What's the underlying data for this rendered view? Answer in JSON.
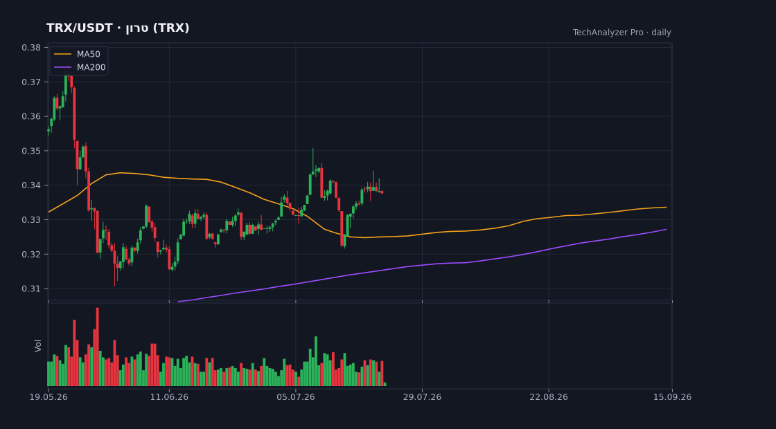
{
  "header": {
    "title": "TRX/USDT  ·  טרון (TRX)",
    "source": "TechAnalyzer Pro · daily"
  },
  "colors": {
    "background": "#131722",
    "up": "#2bb35a",
    "down": "#e8343f",
    "ma50": "#f7a21b",
    "ma200": "#9b4dff",
    "grid": "#232938"
  },
  "chart_data": {
    "type": "candlestick",
    "price_axis": {
      "ylim": [
        0.3066,
        0.3813
      ],
      "ticks": [
        "0.31",
        "0.32",
        "0.33",
        "0.34",
        "0.35",
        "0.36",
        "0.37",
        "0.38"
      ]
    },
    "volume_axis": {
      "ylabel": "Vol"
    },
    "x_ticks": [
      "19.05.26",
      "11.06.26",
      "05.07.26",
      "29.07.26",
      "22.08.26",
      "15.09.26"
    ],
    "legend": [
      "MA50",
      "MA200"
    ],
    "legend_position": "top-left",
    "grid": true,
    "candles": [
      [
        0.3557,
        0.3571,
        0.3544,
        0.3562
      ],
      [
        0.3572,
        0.3595,
        0.3552,
        0.3593
      ],
      [
        0.3591,
        0.3658,
        0.3586,
        0.3653
      ],
      [
        0.3654,
        0.3665,
        0.3617,
        0.3623
      ],
      [
        0.3623,
        0.3631,
        0.3588,
        0.3629
      ],
      [
        0.3626,
        0.3673,
        0.3625,
        0.3658
      ],
      [
        0.3663,
        0.3732,
        0.3643,
        0.3722
      ],
      [
        0.3722,
        0.3761,
        0.3703,
        0.3716
      ],
      [
        0.3717,
        0.3728,
        0.3667,
        0.3684
      ],
      [
        0.3682,
        0.3687,
        0.3507,
        0.3532
      ],
      [
        0.3528,
        0.353,
        0.34,
        0.3446
      ],
      [
        0.3446,
        0.3499,
        0.3445,
        0.3481
      ],
      [
        0.3481,
        0.3516,
        0.3479,
        0.3512
      ],
      [
        0.3514,
        0.3525,
        0.342,
        0.344
      ],
      [
        0.344,
        0.3451,
        0.3323,
        0.3327
      ],
      [
        0.333,
        0.3358,
        0.3297,
        0.3333
      ],
      [
        0.3334,
        0.3335,
        0.3272,
        0.3324
      ],
      [
        0.3325,
        0.3327,
        0.3203,
        0.3204
      ],
      [
        0.3205,
        0.3244,
        0.3186,
        0.3244
      ],
      [
        0.3246,
        0.3294,
        0.3232,
        0.327
      ],
      [
        0.3271,
        0.3284,
        0.3241,
        0.3268
      ],
      [
        0.3265,
        0.3273,
        0.3217,
        0.3226
      ],
      [
        0.3226,
        0.3234,
        0.3206,
        0.321
      ],
      [
        0.321,
        0.3232,
        0.3107,
        0.3172
      ],
      [
        0.3172,
        0.3194,
        0.3122,
        0.316
      ],
      [
        0.316,
        0.318,
        0.3152,
        0.3179
      ],
      [
        0.3177,
        0.3232,
        0.3158,
        0.322
      ],
      [
        0.3215,
        0.3224,
        0.3183,
        0.3184
      ],
      [
        0.3184,
        0.319,
        0.3166,
        0.3173
      ],
      [
        0.3176,
        0.3225,
        0.3165,
        0.3219
      ],
      [
        0.3219,
        0.322,
        0.3205,
        0.321
      ],
      [
        0.3209,
        0.3245,
        0.3202,
        0.3234
      ],
      [
        0.324,
        0.3279,
        0.3231,
        0.3269
      ],
      [
        0.3274,
        0.3282,
        0.3271,
        0.328
      ],
      [
        0.328,
        0.3344,
        0.3276,
        0.3341
      ],
      [
        0.3338,
        0.3338,
        0.3295,
        0.3292
      ],
      [
        0.3295,
        0.3298,
        0.3265,
        0.3277
      ],
      [
        0.3278,
        0.329,
        0.3237,
        0.3247
      ],
      [
        0.3236,
        0.3236,
        0.319,
        0.3206
      ],
      [
        0.3208,
        0.3212,
        0.3199,
        0.3212
      ],
      [
        0.3214,
        0.3242,
        0.321,
        0.3218
      ],
      [
        0.3219,
        0.3228,
        0.3205,
        0.3213
      ],
      [
        0.3214,
        0.3223,
        0.3154,
        0.3156
      ],
      [
        0.3155,
        0.3174,
        0.315,
        0.3163
      ],
      [
        0.3164,
        0.3193,
        0.3153,
        0.3178
      ],
      [
        0.318,
        0.3246,
        0.3171,
        0.3234
      ],
      [
        0.3243,
        0.3259,
        0.3243,
        0.3256
      ],
      [
        0.3254,
        0.3303,
        0.3251,
        0.3294
      ],
      [
        0.3294,
        0.3303,
        0.3287,
        0.3296
      ],
      [
        0.3296,
        0.3326,
        0.3287,
        0.3317
      ],
      [
        0.3312,
        0.3317,
        0.3276,
        0.3288
      ],
      [
        0.3288,
        0.3331,
        0.3276,
        0.3319
      ],
      [
        0.3317,
        0.333,
        0.3301,
        0.3302
      ],
      [
        0.3303,
        0.3311,
        0.3296,
        0.3307
      ],
      [
        0.3308,
        0.3322,
        0.3302,
        0.3314
      ],
      [
        0.3314,
        0.332,
        0.3241,
        0.3245
      ],
      [
        0.325,
        0.3262,
        0.3244,
        0.3259
      ],
      [
        0.326,
        0.3261,
        0.3243,
        0.3244
      ],
      [
        0.3234,
        0.3235,
        0.3219,
        0.3229
      ],
      [
        0.3228,
        0.326,
        0.3228,
        0.3257
      ],
      [
        0.3264,
        0.3275,
        0.3262,
        0.3271
      ],
      [
        0.3271,
        0.3272,
        0.3261,
        0.3268
      ],
      [
        0.3269,
        0.3303,
        0.326,
        0.3297
      ],
      [
        0.3294,
        0.3296,
        0.3285,
        0.3285
      ],
      [
        0.3285,
        0.3308,
        0.3279,
        0.3297
      ],
      [
        0.3297,
        0.3317,
        0.3282,
        0.3312
      ],
      [
        0.3315,
        0.3332,
        0.331,
        0.3321
      ],
      [
        0.332,
        0.3322,
        0.3241,
        0.325
      ],
      [
        0.325,
        0.3266,
        0.3241,
        0.3265
      ],
      [
        0.3257,
        0.3291,
        0.3255,
        0.3285
      ],
      [
        0.3285,
        0.3293,
        0.3255,
        0.3259
      ],
      [
        0.3259,
        0.3289,
        0.3258,
        0.3285
      ],
      [
        0.328,
        0.3282,
        0.3267,
        0.3269
      ],
      [
        0.3273,
        0.3294,
        0.3256,
        0.3286
      ],
      [
        0.3286,
        0.3314,
        0.327,
        0.327
      ],
      [
        0.3275,
        0.3276,
        0.3276,
        0.3275
      ],
      [
        0.3274,
        0.3282,
        0.326,
        0.3276
      ],
      [
        0.3273,
        0.3283,
        0.3265,
        0.3278
      ],
      [
        0.3278,
        0.3291,
        0.3266,
        0.3289
      ],
      [
        0.3292,
        0.3301,
        0.3284,
        0.3296
      ],
      [
        0.33,
        0.331,
        0.3298,
        0.3306
      ],
      [
        0.3309,
        0.3366,
        0.3309,
        0.335
      ],
      [
        0.3358,
        0.3374,
        0.335,
        0.3367
      ],
      [
        0.3364,
        0.3384,
        0.3343,
        0.3348
      ],
      [
        0.3349,
        0.3349,
        0.3324,
        0.3332
      ],
      [
        0.3326,
        0.3328,
        0.3315,
        0.3314
      ],
      [
        0.3313,
        0.3313,
        0.3313,
        0.3313
      ],
      [
        0.3313,
        0.3335,
        0.3289,
        0.3311
      ],
      [
        0.331,
        0.3337,
        0.3308,
        0.3329
      ],
      [
        0.3327,
        0.3337,
        0.3325,
        0.3343
      ],
      [
        0.3345,
        0.3372,
        0.3345,
        0.337
      ],
      [
        0.3372,
        0.3435,
        0.3372,
        0.3431
      ],
      [
        0.3431,
        0.3508,
        0.3432,
        0.344
      ],
      [
        0.3442,
        0.3459,
        0.3424,
        0.3446
      ],
      [
        0.344,
        0.3452,
        0.3435,
        0.345
      ],
      [
        0.345,
        0.3465,
        0.3363,
        0.3364
      ],
      [
        0.3363,
        0.3386,
        0.3355,
        0.3369
      ],
      [
        0.337,
        0.3387,
        0.3356,
        0.3384
      ],
      [
        0.3376,
        0.3418,
        0.3372,
        0.3413
      ],
      [
        0.3411,
        0.3415,
        0.3406,
        0.3409
      ],
      [
        0.3409,
        0.3411,
        0.3362,
        0.3364
      ],
      [
        0.3363,
        0.3365,
        0.3323,
        0.3327
      ],
      [
        0.3325,
        0.3325,
        0.322,
        0.3225
      ],
      [
        0.3223,
        0.3259,
        0.3216,
        0.3256
      ],
      [
        0.3252,
        0.3317,
        0.3253,
        0.3313
      ],
      [
        0.3309,
        0.3319,
        0.3275,
        0.3317
      ],
      [
        0.3318,
        0.3343,
        0.3304,
        0.3338
      ],
      [
        0.3338,
        0.3354,
        0.3329,
        0.3347
      ],
      [
        0.3347,
        0.3355,
        0.3342,
        0.3344
      ],
      [
        0.3347,
        0.3393,
        0.3341,
        0.3387
      ],
      [
        0.339,
        0.3396,
        0.3378,
        0.3389
      ],
      [
        0.3389,
        0.341,
        0.338,
        0.3396
      ],
      [
        0.3396,
        0.3408,
        0.3355,
        0.3383
      ],
      [
        0.3384,
        0.3442,
        0.3383,
        0.3395
      ],
      [
        0.3395,
        0.3408,
        0.338,
        0.3383
      ],
      [
        0.338,
        0.342,
        0.3378,
        0.3383
      ],
      [
        0.3383,
        0.3386,
        0.3375,
        0.3376
      ]
    ],
    "ma50": [
      [
        0,
        0.3322
      ],
      [
        10,
        0.337
      ],
      [
        15,
        0.3405
      ],
      [
        20,
        0.343
      ],
      [
        25,
        0.3436
      ],
      [
        30,
        0.3434
      ],
      [
        35,
        0.343
      ],
      [
        40,
        0.3423
      ],
      [
        45,
        0.342
      ],
      [
        50,
        0.3418
      ],
      [
        55,
        0.3417
      ],
      [
        60,
        0.3409
      ],
      [
        65,
        0.3394
      ],
      [
        70,
        0.3378
      ],
      [
        75,
        0.3359
      ],
      [
        80,
        0.3346
      ],
      [
        85,
        0.3332
      ],
      [
        90,
        0.331
      ],
      [
        93,
        0.3291
      ],
      [
        96,
        0.3272
      ],
      [
        100,
        0.3261
      ],
      [
        105,
        0.325
      ],
      [
        110,
        0.3248
      ],
      [
        115,
        0.325
      ],
      [
        120,
        0.3251
      ],
      [
        125,
        0.3253
      ],
      [
        130,
        0.3258
      ],
      [
        135,
        0.3263
      ],
      [
        140,
        0.3266
      ],
      [
        145,
        0.3267
      ],
      [
        150,
        0.327
      ],
      [
        155,
        0.3275
      ],
      [
        160,
        0.3282
      ],
      [
        165,
        0.3295
      ],
      [
        170,
        0.3303
      ],
      [
        175,
        0.3307
      ],
      [
        180,
        0.3312
      ],
      [
        185,
        0.3313
      ],
      [
        190,
        0.3317
      ],
      [
        195,
        0.3321
      ],
      [
        200,
        0.3326
      ],
      [
        205,
        0.3331
      ],
      [
        210,
        0.3334
      ],
      [
        215,
        0.3336
      ]
    ],
    "ma200": [
      [
        45,
        0.3062
      ],
      [
        50,
        0.3067
      ],
      [
        55,
        0.3074
      ],
      [
        60,
        0.308
      ],
      [
        65,
        0.3087
      ],
      [
        70,
        0.3093
      ],
      [
        75,
        0.3099
      ],
      [
        80,
        0.3106
      ],
      [
        85,
        0.3112
      ],
      [
        90,
        0.3119
      ],
      [
        95,
        0.3126
      ],
      [
        100,
        0.3133
      ],
      [
        105,
        0.314
      ],
      [
        110,
        0.3146
      ],
      [
        115,
        0.3152
      ],
      [
        120,
        0.3158
      ],
      [
        125,
        0.3164
      ],
      [
        130,
        0.3168
      ],
      [
        135,
        0.3172
      ],
      [
        140,
        0.3174
      ],
      [
        145,
        0.3175
      ],
      [
        150,
        0.318
      ],
      [
        155,
        0.3186
      ],
      [
        160,
        0.3192
      ],
      [
        165,
        0.3199
      ],
      [
        170,
        0.3207
      ],
      [
        175,
        0.3216
      ],
      [
        180,
        0.3224
      ],
      [
        185,
        0.3232
      ],
      [
        190,
        0.3238
      ],
      [
        195,
        0.3244
      ],
      [
        200,
        0.3251
      ],
      [
        205,
        0.3257
      ],
      [
        210,
        0.3264
      ],
      [
        215,
        0.3272
      ]
    ],
    "volume": [
      0.34,
      0.34,
      0.44,
      0.42,
      0.36,
      0.31,
      0.57,
      0.54,
      0.41,
      0.92,
      0.64,
      0.4,
      0.33,
      0.44,
      0.58,
      0.54,
      0.79,
      1.09,
      0.49,
      0.4,
      0.37,
      0.39,
      0.33,
      0.64,
      0.43,
      0.22,
      0.3,
      0.4,
      0.32,
      0.41,
      0.37,
      0.44,
      0.48,
      0.22,
      0.45,
      0.42,
      0.59,
      0.59,
      0.43,
      0.2,
      0.32,
      0.41,
      0.4,
      0.39,
      0.28,
      0.38,
      0.25,
      0.39,
      0.42,
      0.33,
      0.41,
      0.32,
      0.31,
      0.2,
      0.2,
      0.39,
      0.33,
      0.39,
      0.22,
      0.23,
      0.25,
      0.2,
      0.25,
      0.26,
      0.28,
      0.25,
      0.2,
      0.32,
      0.25,
      0.24,
      0.23,
      0.32,
      0.23,
      0.21,
      0.28,
      0.39,
      0.28,
      0.25,
      0.24,
      0.2,
      0.14,
      0.22,
      0.38,
      0.29,
      0.3,
      0.23,
      0.2,
      0.13,
      0.23,
      0.34,
      0.34,
      0.52,
      0.4,
      0.69,
      0.29,
      0.32,
      0.46,
      0.44,
      0.36,
      0.47,
      0.23,
      0.25,
      0.37,
      0.46,
      0.28,
      0.3,
      0.32,
      0.2,
      0.19,
      0.27,
      0.36,
      0.29,
      0.37,
      0.36,
      0.34,
      0.2,
      0.35,
      0.05
    ]
  }
}
